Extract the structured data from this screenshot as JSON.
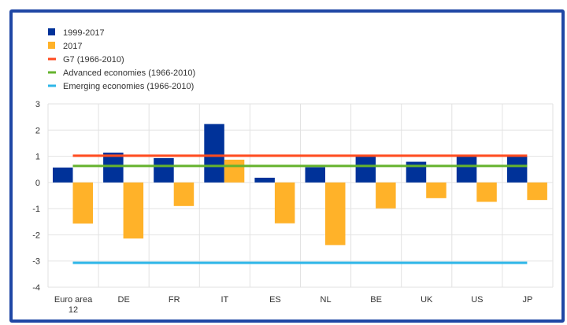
{
  "chart_data": {
    "type": "bar",
    "categories": [
      "Euro area 12",
      "DE",
      "FR",
      "IT",
      "ES",
      "NL",
      "BE",
      "UK",
      "US",
      "JP"
    ],
    "series": [
      {
        "name": "1999-2017",
        "kind": "bar",
        "color": "#003299",
        "values": [
          0.57,
          1.14,
          0.93,
          2.23,
          0.18,
          0.58,
          1.0,
          0.79,
          1.0,
          1.0
        ]
      },
      {
        "name": "2017",
        "kind": "bar",
        "color": "#ffb229",
        "values": [
          -1.57,
          -2.14,
          -0.9,
          0.87,
          -1.56,
          -2.39,
          -0.99,
          -0.6,
          -0.74,
          -0.67
        ]
      },
      {
        "name": "G7 (1966-2010)",
        "kind": "line",
        "color": "#ff4b1f",
        "value": 1.02
      },
      {
        "name": "Advanced economies (1966-2010)",
        "kind": "line",
        "color": "#65b32e",
        "value": 0.63
      },
      {
        "name": "Emerging economies (1966-2010)",
        "kind": "line",
        "color": "#2eb6e8",
        "value": -3.07
      }
    ],
    "yticks": [
      "3",
      "2",
      "1",
      "0",
      "-1",
      "-2",
      "-3",
      "-4"
    ],
    "ylim": [
      -4,
      3
    ],
    "grid": true,
    "legend": "top-left",
    "xlabel": "",
    "ylabel": "",
    "title": ""
  }
}
